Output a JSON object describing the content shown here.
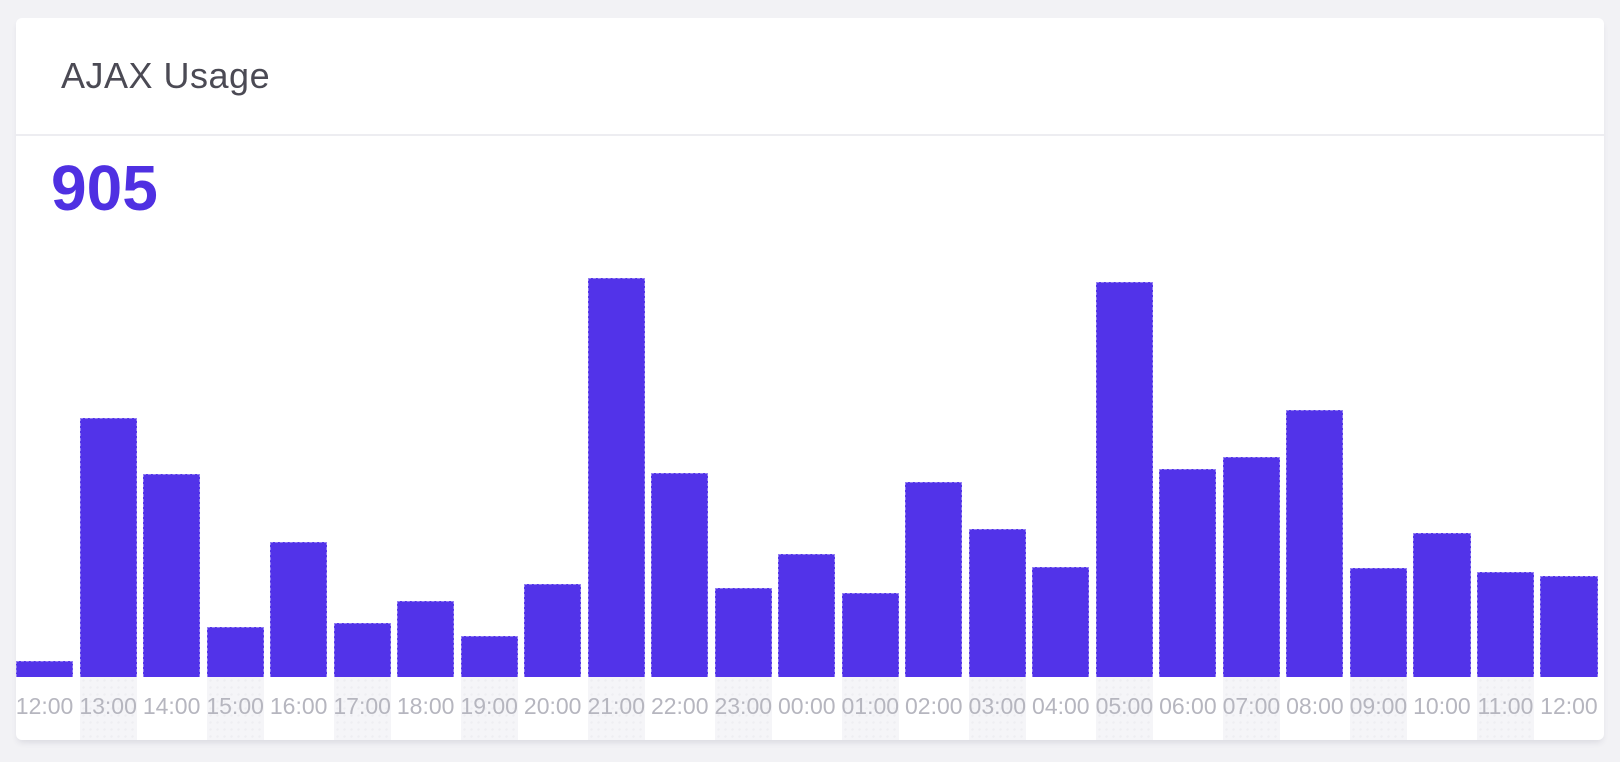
{
  "card": {
    "title": "AJAX Usage",
    "stat_value": "905"
  },
  "colors": {
    "page_bg": "#f2f2f5",
    "card_bg": "#ffffff",
    "divider": "#ededf1",
    "title": "#4b4a54",
    "stat": "#4f30e2",
    "bar": "#5233e9",
    "stripe": "#f5f5f8",
    "axis_label": "#b6b6bf"
  },
  "chart_data": {
    "type": "bar",
    "title": "AJAX Usage",
    "annotation": "905",
    "categories": [
      "12:00",
      "13:00",
      "14:00",
      "15:00",
      "16:00",
      "17:00",
      "18:00",
      "19:00",
      "20:00",
      "21:00",
      "22:00",
      "23:00",
      "00:00",
      "01:00",
      "02:00",
      "03:00",
      "04:00",
      "05:00",
      "06:00",
      "07:00",
      "08:00",
      "09:00",
      "10:00",
      "11:00",
      "12:00"
    ],
    "values": [
      4.0,
      64.9,
      50.9,
      12.5,
      33.8,
      13.5,
      19.0,
      10.3,
      23.3,
      100.0,
      51.1,
      22.3,
      30.8,
      21.1,
      48.9,
      37.1,
      27.6,
      99.0,
      52.1,
      55.1,
      66.9,
      27.3,
      36.1,
      26.3,
      25.3
    ],
    "y_unit": "relative % of max (y-axis unlabeled in source)",
    "xlabel": "",
    "ylabel": "",
    "ylim": [
      0,
      100
    ],
    "grid": false,
    "legend": "none"
  }
}
